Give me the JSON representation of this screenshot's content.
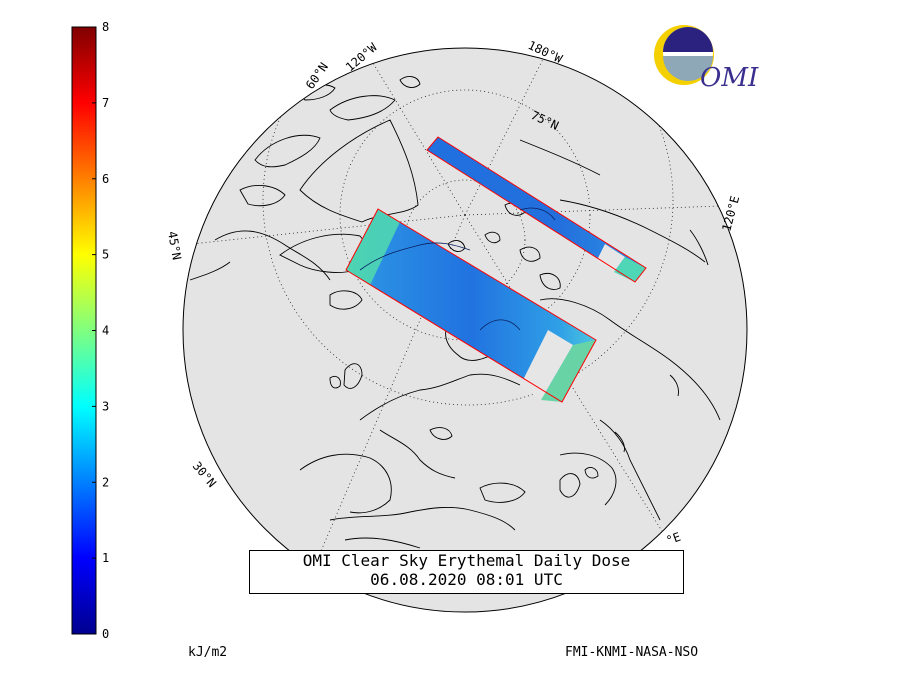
{
  "title": {
    "line1": "OMI Clear Sky Erythemal Daily Dose",
    "line2": "06.08.2020 08:01 UTC"
  },
  "colorbar": {
    "unit": "kJ/m2",
    "ticks": [
      "0",
      "1",
      "2",
      "3",
      "4",
      "5",
      "6",
      "7",
      "8"
    ],
    "range": [
      0,
      8
    ],
    "colormap": "jet"
  },
  "credit": "FMI-KNMI-NASA-NSO",
  "logo": {
    "text": "OMI",
    "icon": "omi-logo-icon"
  },
  "map": {
    "projection": "orthographic-north-polar",
    "land_color": "#e4e4e4",
    "coastline_color": "#000000",
    "swath_outline_color": "#ff0000",
    "grid_labels": {
      "lat_60": "60°N",
      "lat_75": "75°N",
      "lat_45": "45°N",
      "lat_30": "30°N",
      "lon_120w": "120°W",
      "lon_180w": "180°W",
      "lon_120e": "120°E",
      "lon_bottom": "°E"
    }
  }
}
